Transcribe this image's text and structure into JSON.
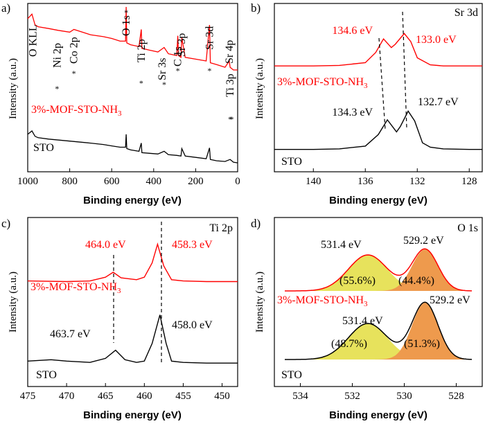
{
  "colors": {
    "red": "#ff0000",
    "black": "#000000",
    "yellow": "#e7e25c",
    "orange": "#ee9a4d"
  },
  "chart_data": [
    {
      "panel": "a)",
      "type": "line",
      "xlabel": "Binding energy (eV)",
      "ylabel": "Intensity (a.u.)",
      "xlim": [
        1000,
        0
      ],
      "xticks": [
        "1000",
        "800",
        "600",
        "400",
        "200",
        "0"
      ],
      "series": [
        {
          "name": "3%-MOF-STO-NH3",
          "x": [
            1000,
            980,
            965,
            950,
            900,
            855,
            800,
            780,
            700,
            640,
            600,
            560,
            534,
            531,
            528,
            510,
            470,
            459,
            456,
            420,
            380,
            350,
            330,
            290,
            285,
            282,
            270,
            266,
            250,
            200,
            150,
            134,
            130,
            100,
            60,
            40,
            36,
            20,
            0
          ],
          "y": [
            87,
            92,
            80,
            78,
            76,
            74,
            72,
            75,
            69,
            67,
            65,
            62,
            62,
            100,
            60,
            58,
            56,
            75,
            54,
            52,
            50,
            55,
            48,
            46,
            68,
            46,
            44,
            66,
            44,
            42,
            40,
            80,
            38,
            36,
            33,
            40,
            33,
            30,
            30
          ]
        },
        {
          "name": "STO",
          "x": [
            1000,
            980,
            965,
            950,
            900,
            800,
            700,
            640,
            600,
            560,
            534,
            531,
            528,
            510,
            470,
            459,
            456,
            420,
            380,
            350,
            330,
            290,
            270,
            266,
            250,
            200,
            150,
            134,
            130,
            100,
            60,
            36,
            20,
            0
          ],
          "y": [
            45,
            50,
            42,
            40,
            38,
            35,
            32,
            30,
            28,
            26,
            26,
            45,
            24,
            22,
            20,
            32,
            18,
            17,
            16,
            20,
            15,
            14,
            13,
            24,
            13,
            11,
            9,
            25,
            8,
            6,
            5,
            8,
            4,
            3
          ]
        }
      ],
      "annotations": [
        {
          "text": "O KLL",
          "x": 975
        },
        {
          "text": "Ni 2p",
          "x": 860
        },
        {
          "text": "Co 2p",
          "x": 780
        },
        {
          "text": "O 1s",
          "x": 531
        },
        {
          "text": "Ti 2p",
          "x": 459
        },
        {
          "text": "Sr 3s",
          "x": 360
        },
        {
          "text": "C 1s",
          "x": 285
        },
        {
          "text": "Sr 3p",
          "x": 268
        },
        {
          "text": "Sr 3d",
          "x": 134
        },
        {
          "text": "Sr 4p",
          "x": 40
        },
        {
          "text": "Ti 3p",
          "x": 36
        }
      ],
      "labels": {
        "sample_top": "3%-MOF-STO-NH",
        "sample_sub": "3",
        "sample_bottom": "STO"
      }
    },
    {
      "panel": "b)",
      "type": "line",
      "title": "Sr 3d",
      "xlabel": "Binding energy (eV)",
      "ylabel": "Intensity (a.u.)",
      "xlim": [
        143,
        127
      ],
      "xticks": [
        "140",
        "136",
        "132",
        "128"
      ],
      "series": [
        {
          "name": "3%-MOF-STO-NH3",
          "x": [
            143,
            140,
            138,
            136,
            135.2,
            134.6,
            134.0,
            133.7,
            133.0,
            132.5,
            132.0,
            131,
            130,
            128,
            127
          ],
          "y": [
            10,
            10,
            11,
            16,
            35,
            60,
            44,
            50,
            70,
            55,
            25,
            12,
            10,
            10,
            10
          ]
        },
        {
          "name": "STO",
          "x": [
            143,
            140,
            138,
            136,
            135.0,
            134.3,
            133.6,
            133.3,
            132.7,
            132.2,
            131.6,
            131,
            130,
            128,
            127
          ],
          "y": [
            8,
            8,
            9,
            14,
            35,
            62,
            40,
            50,
            78,
            60,
            20,
            12,
            9,
            8,
            8
          ]
        }
      ],
      "peaks": [
        {
          "text": "134.6 eV",
          "x": 134.6
        },
        {
          "text": "133.0 eV",
          "x": 133.0
        },
        {
          "text": "134.3 eV",
          "x": 134.3
        },
        {
          "text": "132.7 eV",
          "x": 132.7
        }
      ],
      "labels": {
        "sample_top": "3%-MOF-STO-NH",
        "sample_sub": "3",
        "sample_bottom": "STO"
      }
    },
    {
      "panel": "c)",
      "type": "line",
      "title": "Ti 2p",
      "xlabel": "Binding energy (eV)",
      "ylabel": "Intensity (a.u.)",
      "xlim": [
        475,
        448
      ],
      "xticks": [
        "475",
        "470",
        "465",
        "460",
        "455",
        "450"
      ],
      "series": [
        {
          "name": "3%-MOF-STO-NH3",
          "x": [
            475,
            470,
            467,
            465,
            464.0,
            463,
            461,
            460,
            459,
            458.3,
            457.5,
            456.5,
            455,
            452,
            448
          ],
          "y": [
            16,
            15,
            16,
            22,
            30,
            21,
            18,
            22,
            45,
            75,
            40,
            18,
            16,
            15,
            15
          ]
        },
        {
          "name": "STO",
          "x": [
            475,
            472,
            470,
            467,
            465,
            463.7,
            462.5,
            461,
            460,
            459,
            458.0,
            457.2,
            456.5,
            455,
            452,
            448
          ],
          "y": [
            14,
            16,
            14,
            12,
            18,
            30,
            16,
            12,
            14,
            40,
            82,
            40,
            14,
            12,
            11,
            11
          ]
        }
      ],
      "peaks": [
        {
          "text": "464.0 eV",
          "x": 464.0
        },
        {
          "text": "458.3 eV",
          "x": 458.3
        },
        {
          "text": "463.7 eV",
          "x": 463.7
        },
        {
          "text": "458.0 eV",
          "x": 458.0
        }
      ],
      "labels": {
        "sample_top": "3%-MOF-STO-NH",
        "sample_sub": "3",
        "sample_bottom": "STO"
      }
    },
    {
      "panel": "d)",
      "type": "area",
      "title": "O 1s",
      "xlabel": "Binding energy (eV)",
      "ylabel": "Intensity (a.u.)",
      "xlim": [
        535,
        527
      ],
      "xticks": [
        "534",
        "532",
        "530",
        "528"
      ],
      "series": [
        {
          "name": "3%-MOF-STO-NH3",
          "center_531": 531.4,
          "center_529": 529.2,
          "share_531": "(55.6%)",
          "share_529": "(44.4%)"
        },
        {
          "name": "STO",
          "center_531": 531.4,
          "center_529": 529.2,
          "share_531": "(48.7%)",
          "share_529": "(51.3%)"
        }
      ],
      "peaks": [
        {
          "text": "531.4 eV",
          "x": 531.4
        },
        {
          "text": "529.2 eV",
          "x": 529.2
        },
        {
          "text": "531.4 eV",
          "x": 531.4
        },
        {
          "text": "529.2 eV",
          "x": 529.2
        }
      ],
      "labels": {
        "sample_top": "3%-MOF-STO-NH",
        "sample_sub": "3",
        "sample_bottom": "STO"
      }
    }
  ]
}
